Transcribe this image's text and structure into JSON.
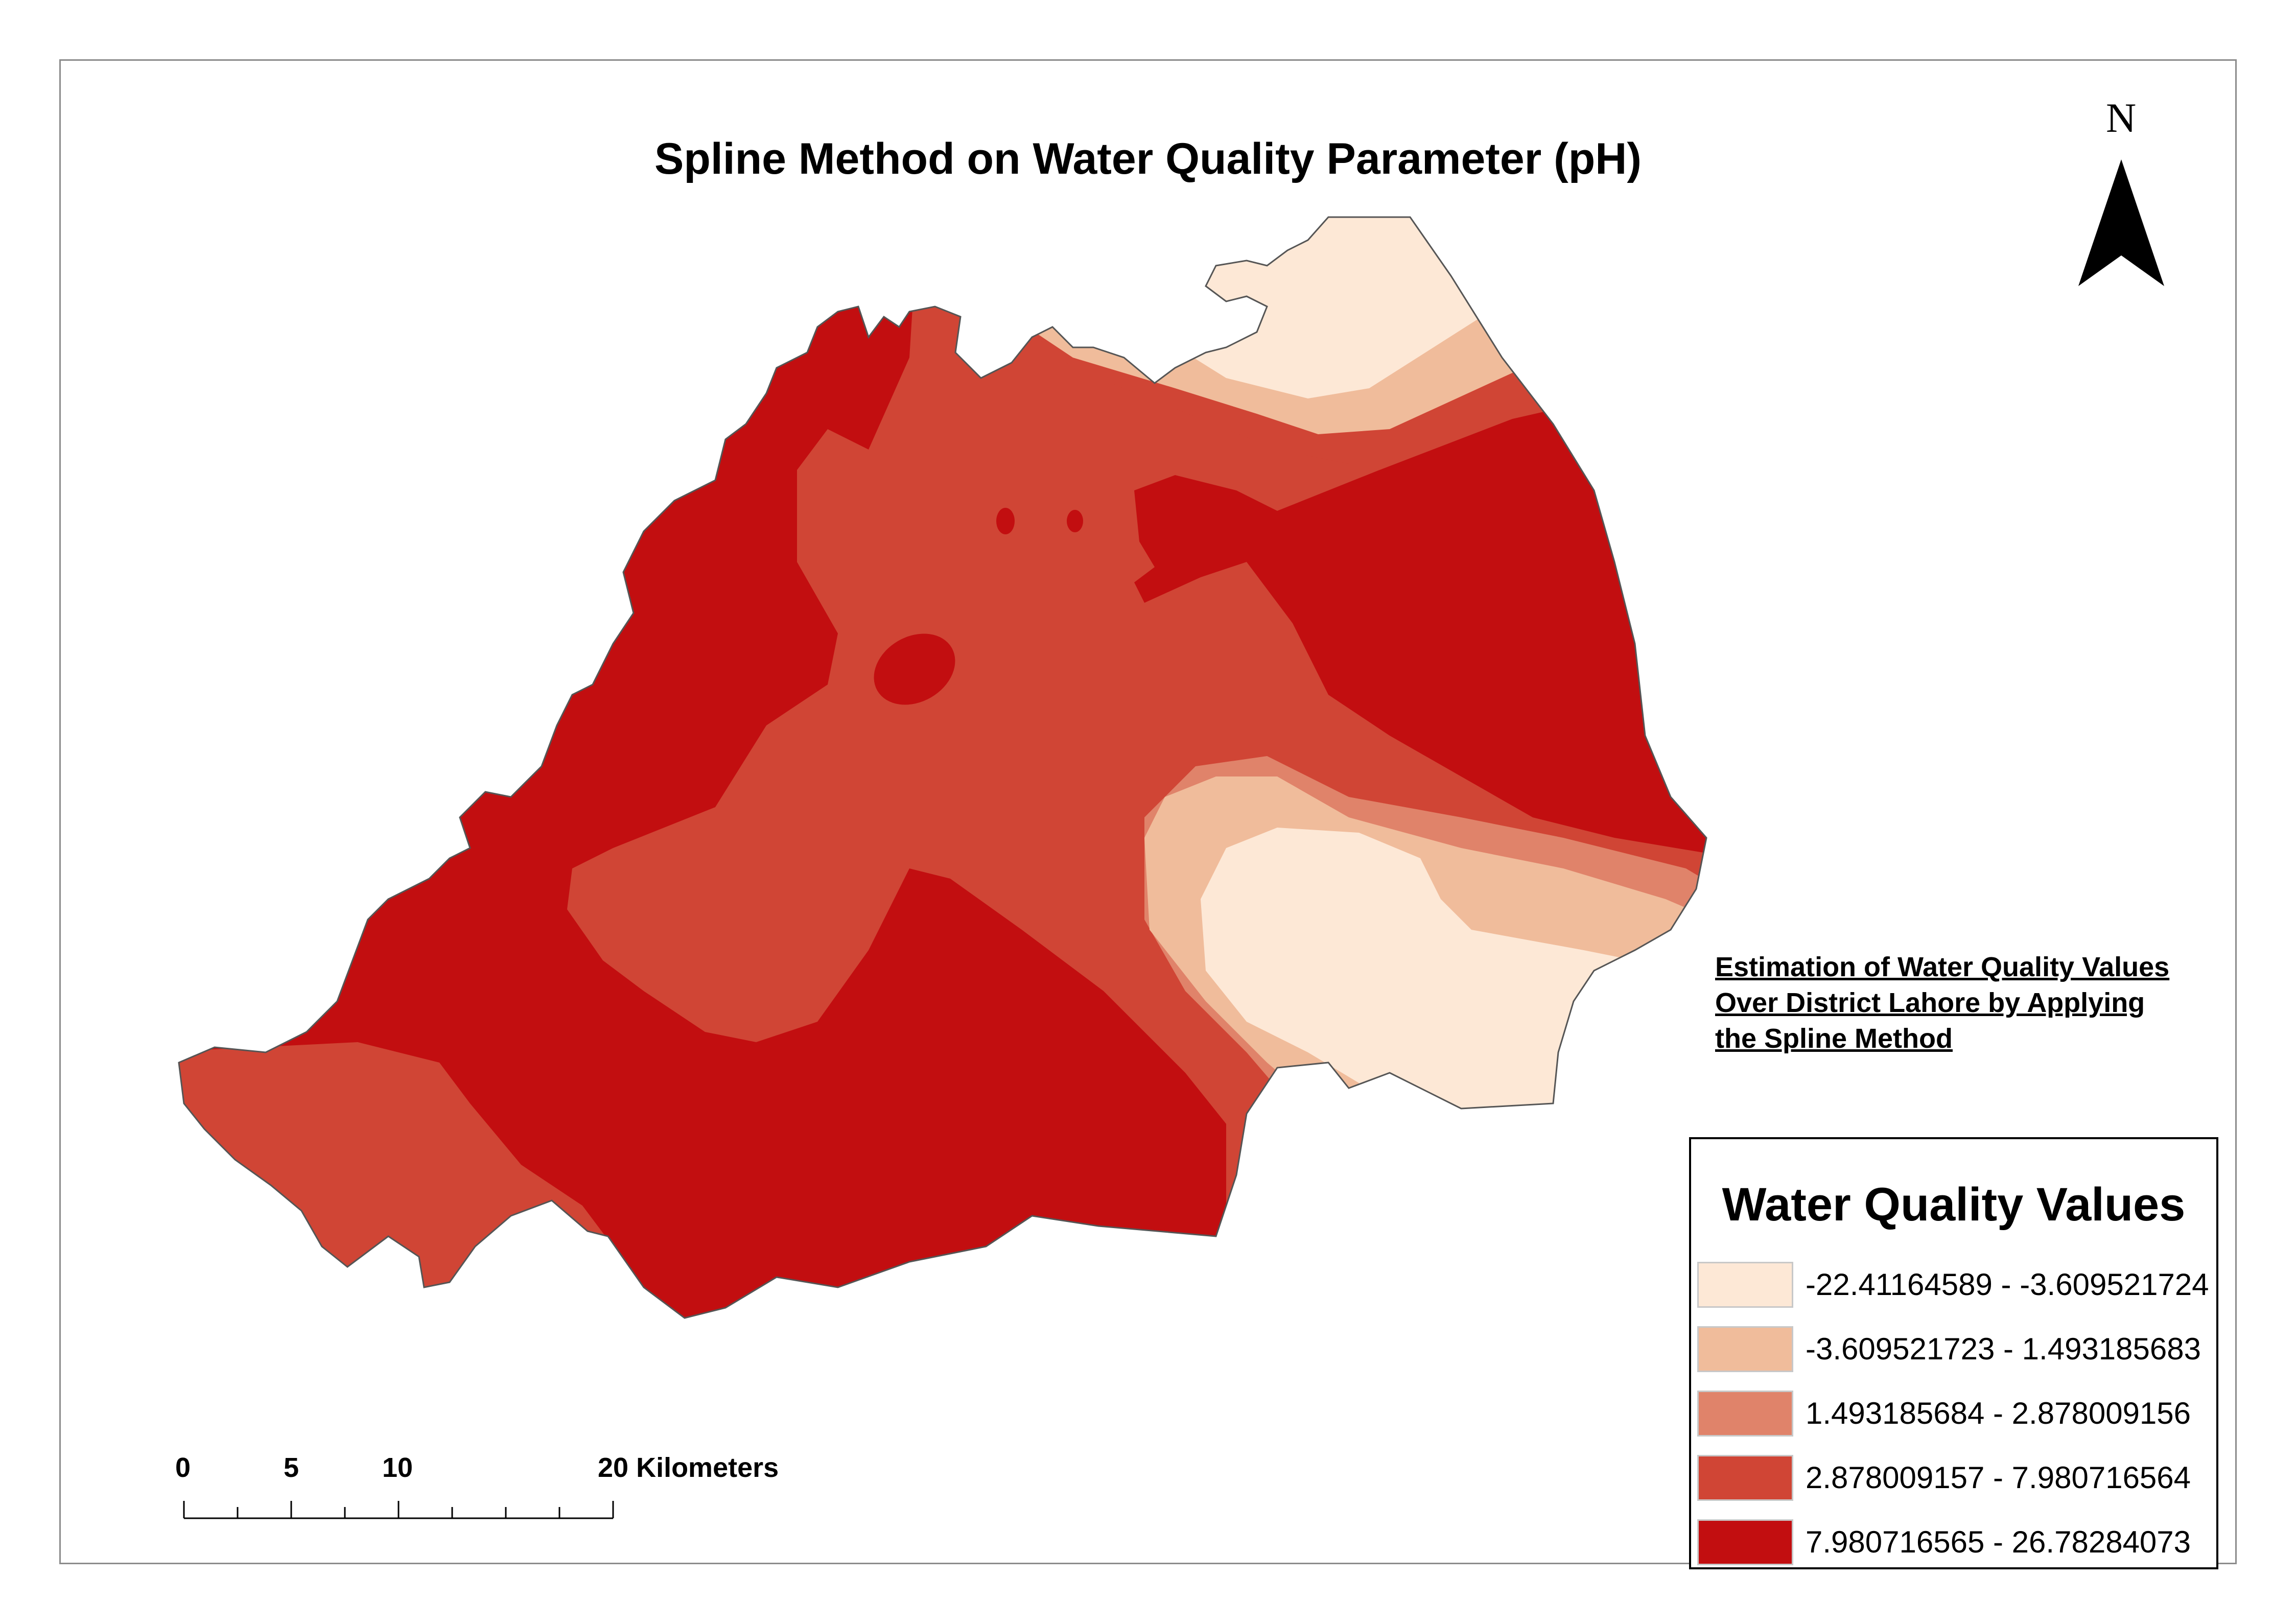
{
  "title": "Spline Method on Water Quality Parameter (pH)",
  "north_arrow": {
    "letter": "N",
    "icon": "north-arrow-icon"
  },
  "note": {
    "line1": "Estimation of Water Quality Values",
    "line2": "Over District Lahore by Applying",
    "line3": "the Spline Method"
  },
  "legend": {
    "title": "Water Quality Values",
    "classes": [
      {
        "label": "-22.41164589 - -3.609521724",
        "color": "#fde8d6"
      },
      {
        "label": "-3.609521723 - 1.493185683",
        "color": "#f0bc9b"
      },
      {
        "label": "1.493185684 - 2.878009156",
        "color": "#e0836a"
      },
      {
        "label": "2.878009157 - 7.980716564",
        "color": "#d04535"
      },
      {
        "label": "7.980716565 - 26.78284073",
        "color": "#c20e10"
      }
    ]
  },
  "scale_bar": {
    "ticks": [
      "0",
      "5",
      "10",
      "20 Kilometers"
    ]
  },
  "colors": {
    "frame": "#8c8c8c",
    "boundary": "#555555"
  }
}
